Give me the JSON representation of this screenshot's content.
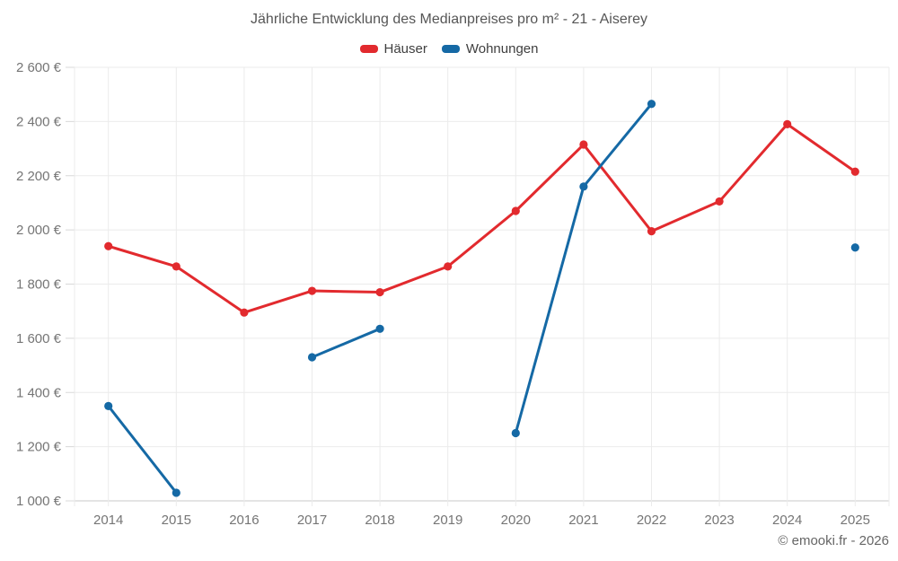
{
  "footer": "© emooki.fr - 2026",
  "chart_data": {
    "type": "line",
    "title": "Jährliche Entwicklung des Medianpreises pro m² - 21 - Aiserey",
    "categories": [
      "2014",
      "2015",
      "2016",
      "2017",
      "2018",
      "2019",
      "2020",
      "2021",
      "2022",
      "2023",
      "2024",
      "2025"
    ],
    "series": [
      {
        "name": "Häuser",
        "color": "#e22a2e",
        "values": [
          1940,
          1865,
          1695,
          1775,
          1770,
          1865,
          2070,
          2315,
          1995,
          2105,
          2390,
          2215
        ]
      },
      {
        "name": "Wohnungen",
        "color": "#1569a5",
        "values": [
          1350,
          1030,
          null,
          1530,
          1635,
          null,
          1250,
          2160,
          2465,
          null,
          null,
          1935
        ]
      }
    ],
    "ylim": [
      1000,
      2600
    ],
    "ytick_step": 200,
    "ytick_labels": [
      "1 000 €",
      "1 200 €",
      "1 400 €",
      "1 600 €",
      "1 800 €",
      "2 000 €",
      "2 200 €",
      "2 400 €",
      "2 600 €"
    ],
    "xlabel": "",
    "ylabel": "",
    "grid": true,
    "legend_position": "top",
    "currency_suffix": " €"
  }
}
